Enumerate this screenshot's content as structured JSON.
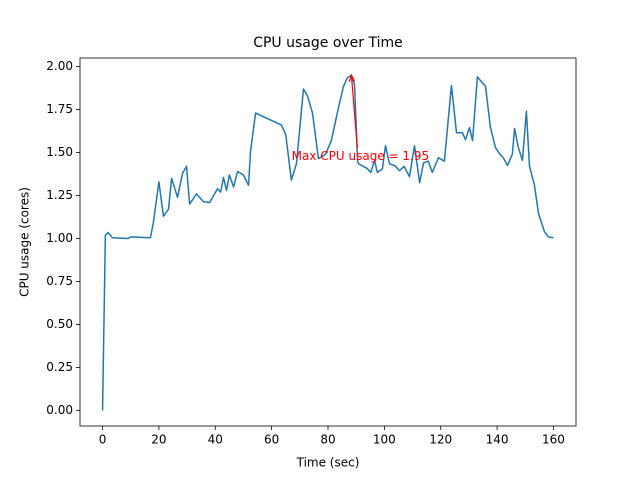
{
  "chart_data": {
    "type": "line",
    "title": "CPU usage over Time",
    "x_label": "Time (sec)",
    "y_label": "CPU usage (cores)",
    "xlim": [
      -8,
      168
    ],
    "ylim": [
      -0.09,
      2.05
    ],
    "xticks": [
      0,
      20,
      40,
      60,
      80,
      100,
      120,
      140,
      160
    ],
    "yticks": [
      {
        "value": 0,
        "label": "0.00"
      },
      0.25,
      {
        "value": 0.5,
        "label": "0.50"
      },
      0.75,
      {
        "value": 1,
        "label": "1.00"
      },
      1.25,
      {
        "value": 1.5,
        "label": "1.50"
      },
      1.75,
      {
        "value": 2,
        "label": "2.00"
      }
    ],
    "grid": false,
    "x": [
      0,
      1,
      2,
      3.5,
      9,
      10,
      17,
      18,
      20,
      21.6,
      23.4,
      24.5,
      26.6,
      28.4,
      29.8,
      30.9,
      33.3,
      35.8,
      38,
      40.8,
      41.9,
      42.9,
      44,
      45,
      46.5,
      47.9,
      50,
      51.8,
      52.5,
      54.3,
      63.5,
      65,
      67,
      68.8,
      71.3,
      72.7,
      74.5,
      76.6,
      79.1,
      81.2,
      83.7,
      85.5,
      86.9,
      88.3,
      89.4,
      90.5,
      90.8,
      93.7,
      95.2,
      96.5,
      97.5,
      99.3,
      100.4,
      101.8,
      103.6,
      105.4,
      107,
      108.9,
      110.7,
      112.5,
      113.9,
      115.6,
      117,
      119.2,
      121.3,
      123.8,
      125.6,
      127.7,
      128.8,
      130.2,
      131.3,
      133,
      135.9,
      137.6,
      139.4,
      140.8,
      142.2,
      143.7,
      145.4,
      146.2,
      147.6,
      149,
      150.4,
      151.5,
      153.2,
      154.7,
      156.8,
      158.2,
      160
    ],
    "series": [
      {
        "color": "#1f77b4",
        "values": [
          0,
          1.02,
          1.035,
          1.005,
          1.0,
          1.01,
          1.005,
          1.09,
          1.33,
          1.13,
          1.17,
          1.35,
          1.24,
          1.38,
          1.42,
          1.2,
          1.26,
          1.215,
          1.21,
          1.29,
          1.27,
          1.355,
          1.28,
          1.37,
          1.3,
          1.39,
          1.37,
          1.31,
          1.505,
          1.73,
          1.66,
          1.605,
          1.34,
          1.435,
          1.87,
          1.83,
          1.73,
          1.465,
          1.49,
          1.57,
          1.76,
          1.885,
          1.935,
          1.95,
          1.895,
          1.455,
          1.435,
          1.41,
          1.385,
          1.455,
          1.385,
          1.405,
          1.54,
          1.435,
          1.425,
          1.395,
          1.42,
          1.36,
          1.54,
          1.325,
          1.44,
          1.45,
          1.385,
          1.47,
          1.45,
          1.89,
          1.615,
          1.615,
          1.575,
          1.645,
          1.57,
          1.94,
          1.885,
          1.65,
          1.53,
          1.495,
          1.47,
          1.425,
          1.49,
          1.64,
          1.525,
          1.455,
          1.74,
          1.42,
          1.315,
          1.145,
          1.04,
          1.01,
          1.005
        ]
      }
    ],
    "annotations": [
      {
        "text": "Max CPU usage = 1.95",
        "x": 88.3,
        "y": 1.95,
        "text_x": 91.5,
        "text_y": 1.477,
        "color": "red"
      }
    ]
  }
}
